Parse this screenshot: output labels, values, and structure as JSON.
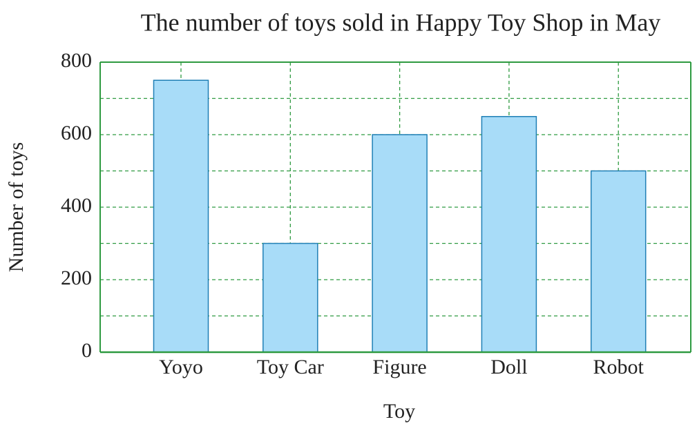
{
  "chart_data": {
    "type": "bar",
    "title": "The number of toys sold in Happy Toy Shop in May",
    "x_label": "Toy",
    "y_label": "Number of toys",
    "categories": [
      "Yoyo",
      "Toy Car",
      "Figure",
      "Doll",
      "Robot"
    ],
    "values": [
      750,
      300,
      600,
      650,
      500
    ],
    "color": "#a8dcf8",
    "edge_color": "#1f7fb5",
    "ylim": [
      0,
      800
    ],
    "yticks": [
      0,
      200,
      400,
      600,
      800
    ],
    "minor_yticks": [
      100,
      300,
      500,
      700
    ],
    "grid": true,
    "grid_color": "#2e9a40"
  }
}
